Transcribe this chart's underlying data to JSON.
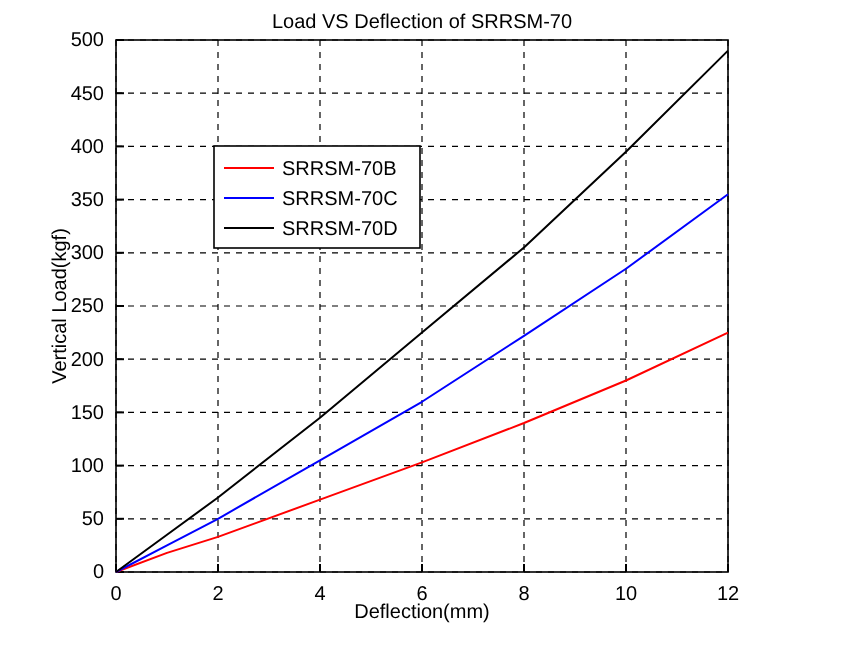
{
  "chart_data": {
    "type": "line",
    "title": "Load VS Deflection of SRRSM-70",
    "xlabel": "Deflection(mm)",
    "ylabel": "Vertical Load(kgf)",
    "xlim": [
      0,
      12
    ],
    "xticks": [
      0,
      2,
      4,
      6,
      8,
      10,
      12
    ],
    "ylim": [
      0,
      500
    ],
    "yticks": [
      0,
      50,
      100,
      150,
      200,
      250,
      300,
      350,
      400,
      450,
      500
    ],
    "grid": true,
    "legend": "top left",
    "marker": "none",
    "line_style": "solid",
    "series": [
      {
        "name": "SRRSM-70B",
        "color": "#ff0000",
        "x": [
          0,
          1,
          2,
          4,
          6,
          8,
          10,
          12
        ],
        "values": [
          0,
          18,
          33,
          68,
          103,
          140,
          180,
          225
        ]
      },
      {
        "name": "SRRSM-70C",
        "color": "#0000ff",
        "x": [
          0,
          1,
          2,
          4,
          6,
          8,
          10,
          12
        ],
        "values": [
          0,
          25,
          50,
          105,
          160,
          222,
          285,
          355
        ]
      },
      {
        "name": "SRRSM-70D",
        "color": "#000000",
        "x": [
          0,
          1,
          2,
          4,
          6,
          8,
          10,
          12
        ],
        "values": [
          0,
          35,
          70,
          145,
          225,
          305,
          395,
          490
        ]
      }
    ]
  }
}
